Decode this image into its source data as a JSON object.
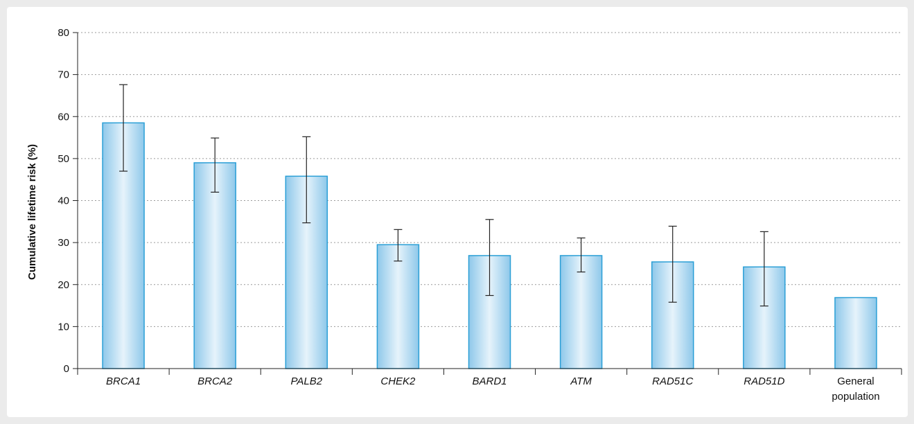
{
  "colors": {
    "background": "#ebebeb",
    "plot_background": "#ffffff",
    "bar_fill_edge": "#8ec8ea",
    "bar_fill_center": "#e6f3fb",
    "bar_stroke": "#2a9fd6",
    "grid": "#9a9a9a",
    "axis": "#222222",
    "error_bar": "#222222"
  },
  "chart_data": {
    "type": "bar",
    "title": "",
    "xlabel": "",
    "ylabel": "Cumulative lifetime risk (%)",
    "ylim": [
      0,
      80
    ],
    "yticks": [
      "0",
      "10",
      "20",
      "30",
      "40",
      "50",
      "60",
      "70",
      "80"
    ],
    "grid": "horizontal dotted",
    "categories": [
      {
        "label": "BRCA1",
        "italic": true
      },
      {
        "label": "BRCA2",
        "italic": true
      },
      {
        "label": "PALB2",
        "italic": true
      },
      {
        "label": "CHEK2",
        "italic": true
      },
      {
        "label": "BARD1",
        "italic": true
      },
      {
        "label": "ATM",
        "italic": true
      },
      {
        "label": "RAD51C",
        "italic": true
      },
      {
        "label": "RAD51D",
        "italic": true
      },
      {
        "label": "General population",
        "italic": false,
        "lines": [
          "General",
          "population"
        ]
      }
    ],
    "values": [
      58.5,
      49,
      45.8,
      29.5,
      26.9,
      26.9,
      25.4,
      24.2,
      16.9
    ],
    "error_low": [
      47,
      42,
      34.7,
      25.6,
      17.4,
      23,
      15.8,
      14.9,
      null
    ],
    "error_high": [
      67.6,
      54.9,
      55.2,
      33.1,
      35.5,
      31.1,
      33.9,
      32.6,
      null
    ]
  }
}
